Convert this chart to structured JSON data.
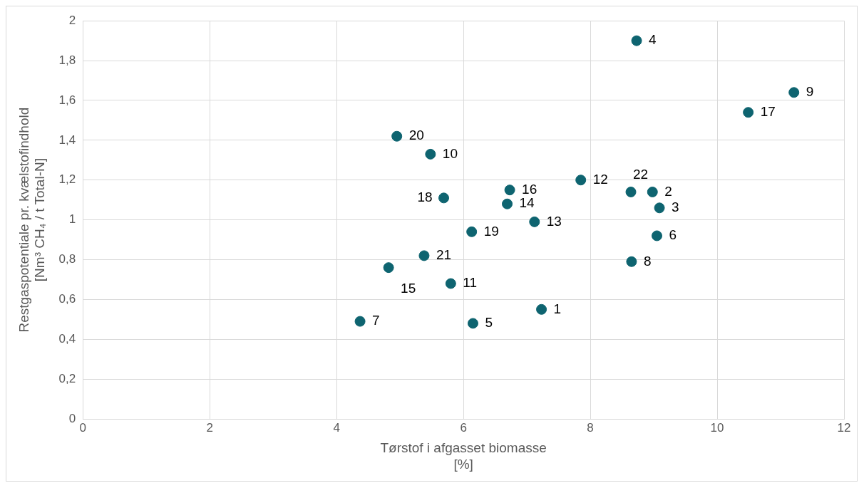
{
  "chart_data": {
    "type": "scatter",
    "xlabel": "Tørstof i afgasset biomasse\n[%]",
    "ylabel": "Restgaspotentiale pr. kvælstofindhold\n[Nm³ CH₄ / t Total-N]",
    "x": [
      7.23,
      8.98,
      9.09,
      8.73,
      6.15,
      9.05,
      4.37,
      8.65,
      11.21,
      5.48,
      5.8,
      7.85,
      7.12,
      6.69,
      4.82,
      6.73,
      10.49,
      5.69,
      6.13,
      4.95,
      5.38,
      8.64
    ],
    "series": [
      {
        "color": "#0e6470",
        "values": [
          0.55,
          1.14,
          1.06,
          1.9,
          0.48,
          0.92,
          0.49,
          0.79,
          1.64,
          1.33,
          0.68,
          1.2,
          0.99,
          1.08,
          0.76,
          1.15,
          1.54,
          1.11,
          0.94,
          1.42,
          0.82,
          1.14
        ]
      }
    ],
    "annotations": [
      {
        "text": "1",
        "x": 7.23,
        "y": 0.55
      },
      {
        "text": "2",
        "x": 8.98,
        "y": 1.14
      },
      {
        "text": "3",
        "x": 9.09,
        "y": 1.06
      },
      {
        "text": "4",
        "x": 8.73,
        "y": 1.9
      },
      {
        "text": "5",
        "x": 6.15,
        "y": 0.48
      },
      {
        "text": "6",
        "x": 9.05,
        "y": 0.92
      },
      {
        "text": "7",
        "x": 4.37,
        "y": 0.49
      },
      {
        "text": "8",
        "x": 8.65,
        "y": 0.79
      },
      {
        "text": "9",
        "x": 11.21,
        "y": 1.64
      },
      {
        "text": "10",
        "x": 5.48,
        "y": 1.33
      },
      {
        "text": "11",
        "x": 5.8,
        "y": 0.68
      },
      {
        "text": "12",
        "x": 7.85,
        "y": 1.2
      },
      {
        "text": "13",
        "x": 7.12,
        "y": 0.99
      },
      {
        "text": "14",
        "x": 6.69,
        "y": 1.08
      },
      {
        "text": "15",
        "x": 4.82,
        "y": 0.76
      },
      {
        "text": "16",
        "x": 6.73,
        "y": 1.15
      },
      {
        "text": "17",
        "x": 10.49,
        "y": 1.54
      },
      {
        "text": "18",
        "x": 5.69,
        "y": 1.11
      },
      {
        "text": "19",
        "x": 6.13,
        "y": 0.94
      },
      {
        "text": "20",
        "x": 4.95,
        "y": 1.42
      },
      {
        "text": "21",
        "x": 5.38,
        "y": 0.82
      },
      {
        "text": "22",
        "x": 8.64,
        "y": 1.14
      }
    ],
    "marker": "circle",
    "xlim": [
      0,
      12
    ],
    "xticks": [
      0,
      2,
      4,
      6,
      8,
      10,
      12
    ],
    "ylim": [
      0,
      2
    ],
    "yticks": [
      0,
      {
        "value": 0.2,
        "label": "0,2"
      },
      {
        "value": 0.4,
        "label": "0,4"
      },
      {
        "value": 0.6,
        "label": "0,6"
      },
      {
        "value": 0.8,
        "label": "0,8"
      },
      1,
      {
        "value": 1.2,
        "label": "1,2"
      },
      {
        "value": 1.4,
        "label": "1,4"
      },
      {
        "value": 1.6,
        "label": "1,6"
      },
      {
        "value": 1.8,
        "label": "1,8"
      },
      2
    ],
    "grid": true,
    "legend": false
  }
}
